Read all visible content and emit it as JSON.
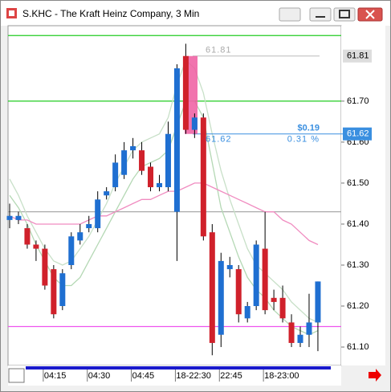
{
  "chart_data": {
    "type": "candlestick",
    "title": "S.KHC - The Kraft Heinz Company, 3 Min",
    "categories": [
      null,
      null,
      null,
      null,
      "04:15",
      null,
      null,
      null,
      null,
      "04:30",
      null,
      null,
      null,
      null,
      "04:45",
      null,
      null,
      null,
      null,
      "18-22:30",
      null,
      null,
      null,
      null,
      "22:45",
      null,
      null,
      null,
      null,
      "18-23:00",
      null,
      null,
      null,
      null,
      null,
      null
    ],
    "open": [
      61.41,
      61.41,
      61.39,
      61.35,
      61.34,
      61.29,
      61.2,
      61.3,
      61.36,
      61.39,
      61.39,
      61.47,
      61.49,
      61.52,
      61.58,
      61.58,
      61.54,
      61.49,
      61.49,
      61.43,
      61.81,
      61.63,
      61.66,
      61.38,
      61.13,
      61.29,
      61.29,
      61.17,
      61.2,
      61.34,
      61.22,
      61.22,
      61.16,
      61.11,
      61.13,
      61.16
    ],
    "high": [
      61.45,
      61.43,
      61.4,
      61.36,
      61.35,
      61.3,
      61.29,
      61.38,
      61.4,
      61.42,
      61.48,
      61.49,
      61.57,
      61.6,
      61.61,
      61.6,
      61.55,
      61.52,
      61.65,
      61.79,
      61.84,
      61.67,
      61.67,
      61.4,
      61.33,
      61.32,
      61.3,
      61.21,
      61.36,
      61.43,
      61.24,
      61.25,
      61.18,
      61.15,
      61.23,
      61.26
    ],
    "low": [
      61.39,
      61.4,
      61.34,
      61.31,
      61.24,
      61.17,
      61.19,
      61.29,
      61.35,
      61.38,
      61.38,
      61.46,
      61.48,
      61.51,
      61.56,
      61.52,
      61.48,
      61.48,
      61.48,
      61.31,
      61.62,
      61.61,
      61.36,
      61.08,
      61.1,
      61.27,
      61.16,
      61.16,
      61.19,
      61.18,
      61.19,
      61.16,
      61.1,
      61.1,
      61.1,
      61.09
    ],
    "close": [
      61.42,
      61.42,
      61.35,
      61.34,
      61.25,
      61.18,
      61.28,
      61.37,
      61.38,
      61.4,
      61.46,
      61.48,
      61.55,
      61.58,
      61.59,
      61.53,
      61.49,
      61.5,
      61.62,
      61.78,
      61.63,
      61.66,
      61.37,
      61.11,
      61.31,
      61.3,
      61.18,
      61.2,
      61.35,
      61.19,
      61.21,
      61.17,
      61.11,
      61.13,
      61.16,
      61.26
    ],
    "up_color": "#1f6fd1",
    "down_color": "#d0212b",
    "ylim": [
      61.055,
      61.884
    ],
    "yticks": [
      {
        "value": 61.1,
        "label": "61.10"
      },
      {
        "value": 61.2,
        "label": "61.20"
      },
      {
        "value": 61.3,
        "label": "61.30"
      },
      {
        "value": 61.4,
        "label": "61.40"
      },
      {
        "value": 61.5,
        "label": "61.50"
      },
      {
        "value": 61.6,
        "label": "61.60"
      },
      {
        "value": 61.7,
        "label": "61.70"
      }
    ],
    "hlines": [
      {
        "value": 61.86,
        "color": "#22cc22"
      },
      {
        "value": 61.7,
        "color": "#22cc22"
      },
      {
        "value": 61.43,
        "color": "#aaaaaa"
      },
      {
        "value": 61.15,
        "color": "#ee55ee"
      }
    ],
    "overlays": [
      {
        "color": "#c8e0c8",
        "values": [
          61.51,
          61.47,
          61.42,
          61.38,
          61.34,
          61.31,
          61.3,
          61.31,
          61.34,
          61.37,
          61.41,
          61.45,
          61.5,
          61.54,
          61.58,
          61.6,
          61.61,
          61.62,
          61.66,
          61.74,
          61.8,
          61.78,
          61.72,
          61.62,
          61.53,
          61.46,
          61.4,
          61.34,
          61.3,
          61.28,
          61.26,
          61.24,
          61.21,
          61.19,
          61.17,
          61.16
        ]
      },
      {
        "color": "#b4d8b4",
        "values": [
          61.47,
          61.44,
          61.4,
          61.35,
          61.31,
          61.27,
          61.25,
          61.25,
          61.27,
          61.31,
          61.35,
          61.39,
          61.43,
          61.47,
          61.51,
          61.54,
          61.55,
          61.56,
          61.58,
          61.64,
          61.7,
          61.7,
          61.66,
          61.55,
          61.44,
          61.38,
          61.32,
          61.27,
          61.24,
          61.22,
          61.19,
          61.17,
          61.15,
          61.14,
          61.13,
          61.14
        ]
      },
      {
        "color": "#f08cc0",
        "values": [
          61.42,
          61.41,
          61.41,
          61.4,
          61.4,
          61.4,
          61.4,
          61.4,
          61.4,
          61.41,
          61.42,
          61.42,
          61.43,
          61.44,
          61.45,
          61.46,
          61.46,
          61.47,
          61.48,
          61.48,
          61.49,
          61.5,
          61.5,
          61.49,
          61.48,
          61.47,
          61.46,
          61.45,
          61.44,
          61.43,
          61.43,
          61.41,
          61.4,
          61.38,
          61.36,
          61.35
        ]
      }
    ],
    "measure": {
      "start": 61.81,
      "end": 61.62,
      "change_label": "$0.19",
      "percent_label": "0.31 %"
    }
  }
}
